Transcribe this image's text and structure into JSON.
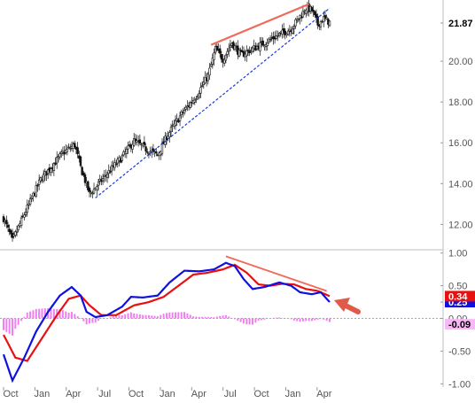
{
  "chart_data": [
    {
      "type": "candlestick",
      "panel": "price",
      "y_tick_labels": [
        "12.00",
        "14.00",
        "16.00",
        "18.00",
        "20.00",
        "21.87"
      ],
      "ylim": [
        10.8,
        23.0
      ],
      "last_price": 21.87,
      "grid": false,
      "axis_side": "right",
      "x_tick_labels": [
        "Oct",
        "Jan",
        "Apr",
        "Jul",
        "Oct",
        "Jan",
        "Apr",
        "Jul",
        "Oct",
        "Jan",
        "Apr"
      ],
      "close_anchors": [
        [
          0,
          12.3
        ],
        [
          6,
          11.2
        ],
        [
          14,
          12.5
        ],
        [
          25,
          14.2
        ],
        [
          40,
          15.5
        ],
        [
          48,
          15.9
        ],
        [
          52,
          14.8
        ],
        [
          58,
          13.5
        ],
        [
          62,
          13.8
        ],
        [
          70,
          14.5
        ],
        [
          80,
          15.3
        ],
        [
          88,
          16.1
        ],
        [
          96,
          15.7
        ],
        [
          104,
          15.4
        ],
        [
          110,
          16.3
        ],
        [
          120,
          17.4
        ],
        [
          130,
          18.3
        ],
        [
          138,
          19.3
        ],
        [
          143,
          20.6
        ],
        [
          148,
          20.1
        ],
        [
          154,
          20.9
        ],
        [
          160,
          20.3
        ],
        [
          168,
          20.6
        ],
        [
          176,
          20.9
        ],
        [
          186,
          21.3
        ],
        [
          194,
          21.6
        ],
        [
          200,
          22.2
        ],
        [
          204,
          22.6
        ],
        [
          208,
          22.5
        ],
        [
          212,
          21.8
        ],
        [
          216,
          22.1
        ],
        [
          220,
          21.9
        ]
      ],
      "support_line": {
        "start_index": 62,
        "start_price": 13.3,
        "end_index": 220,
        "end_price": 22.6
      },
      "resistance_line": {
        "start_index": 140,
        "start_price": 20.8,
        "end_index": 206,
        "end_price": 22.8
      },
      "colors": {
        "candle": "#111111",
        "support": "#1a3cd9",
        "resistance": "#f06a5a"
      }
    },
    {
      "type": "line",
      "panel": "ppo",
      "y_tick_labels": [
        "1.00",
        "0.50",
        "0.25",
        "0.00",
        "-0.50",
        "-1.00"
      ],
      "ylim": [
        -1.05,
        1.05
      ],
      "zero_line": "dashed",
      "series": [
        {
          "role": "indicator",
          "color": "#1010e0",
          "last_value": 0.25,
          "values": [
            [
              0,
              -0.55
            ],
            [
              6,
              -0.95
            ],
            [
              14,
              -0.6
            ],
            [
              22,
              -0.2
            ],
            [
              30,
              0.1
            ],
            [
              38,
              0.35
            ],
            [
              46,
              0.48
            ],
            [
              52,
              0.35
            ],
            [
              56,
              0.1
            ],
            [
              62,
              0.02
            ],
            [
              70,
              0.05
            ],
            [
              80,
              0.18
            ],
            [
              86,
              0.33
            ],
            [
              94,
              0.32
            ],
            [
              104,
              0.35
            ],
            [
              112,
              0.55
            ],
            [
              122,
              0.73
            ],
            [
              132,
              0.72
            ],
            [
              142,
              0.75
            ],
            [
              150,
              0.85
            ],
            [
              156,
              0.8
            ],
            [
              162,
              0.6
            ],
            [
              168,
              0.45
            ],
            [
              176,
              0.48
            ],
            [
              186,
              0.55
            ],
            [
              194,
              0.5
            ],
            [
              200,
              0.4
            ],
            [
              208,
              0.37
            ],
            [
              214,
              0.4
            ],
            [
              220,
              0.25
            ]
          ]
        },
        {
          "role": "signal",
          "color": "#e81010",
          "last_value": 0.34,
          "values": [
            [
              0,
              -0.25
            ],
            [
              8,
              -0.6
            ],
            [
              16,
              -0.65
            ],
            [
              26,
              -0.3
            ],
            [
              36,
              0.05
            ],
            [
              44,
              0.3
            ],
            [
              52,
              0.35
            ],
            [
              58,
              0.2
            ],
            [
              66,
              0.05
            ],
            [
              76,
              0.05
            ],
            [
              88,
              0.2
            ],
            [
              98,
              0.25
            ],
            [
              108,
              0.33
            ],
            [
              118,
              0.5
            ],
            [
              128,
              0.67
            ],
            [
              138,
              0.7
            ],
            [
              148,
              0.75
            ],
            [
              156,
              0.82
            ],
            [
              164,
              0.7
            ],
            [
              172,
              0.52
            ],
            [
              180,
              0.5
            ],
            [
              188,
              0.53
            ],
            [
              196,
              0.52
            ],
            [
              204,
              0.45
            ],
            [
              212,
              0.42
            ],
            [
              220,
              0.34
            ]
          ]
        },
        {
          "role": "histogram",
          "color": "#f080f0",
          "last_value": -0.09
        }
      ],
      "divergence_line": {
        "start_index": 150,
        "start_value": 0.95,
        "end_index": 218,
        "end_value": 0.42
      },
      "annotation_arrow": "points at the end of the indicator lines",
      "value_labels": [
        "0.34",
        "0.25",
        "-0.09"
      ]
    }
  ]
}
